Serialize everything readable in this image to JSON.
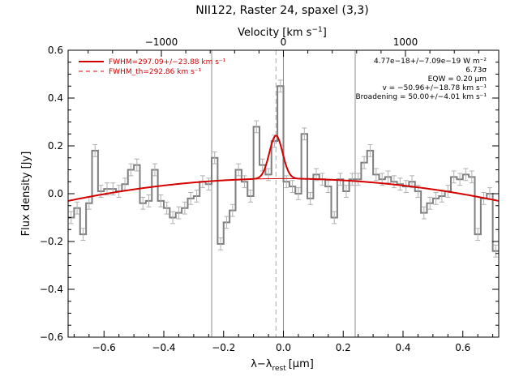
{
  "chart_data": {
    "type": "line",
    "title": "NII122, Raster 24, spaxel (3,3)",
    "xlabel_main": "λ−λ",
    "xlabel_sub": "rest",
    "xlabel_unit": "[μm]",
    "ylabel": "Flux density [Jy]",
    "top_axis_label": "Velocity [km s",
    "top_axis_label_sup": "−1",
    "top_axis_label_end": "]",
    "xlim": [
      -0.72,
      0.72
    ],
    "ylim": [
      -0.6,
      0.6
    ],
    "x_ticks": [
      -0.6,
      -0.4,
      -0.2,
      0.0,
      0.2,
      0.4,
      0.6
    ],
    "x_tick_labels": [
      "−0.6",
      "−0.4",
      "−0.2",
      "0.0",
      "0.2",
      "0.4",
      "0.6"
    ],
    "y_ticks": [
      -0.6,
      -0.4,
      -0.2,
      0.0,
      0.2,
      0.4,
      0.6
    ],
    "y_tick_labels": [
      "−0.6",
      "−0.4",
      "−0.2",
      "0.0",
      "0.2",
      "0.4",
      "0.6"
    ],
    "top_ticks_km_s": [
      -1000,
      0,
      1000
    ],
    "top_tick_labels": [
      "−1000",
      "0",
      "1000"
    ],
    "km_s_per_um": 2450,
    "vertical_lines_x": [
      -0.24,
      0.0,
      0.24
    ],
    "dashed_line_x": -0.025,
    "series": [
      {
        "name": "data",
        "style": "histogram",
        "color": "#7f7f7f",
        "x": [
          -0.72,
          -0.7,
          -0.68,
          -0.66,
          -0.64,
          -0.62,
          -0.6,
          -0.58,
          -0.56,
          -0.54,
          -0.52,
          -0.5,
          -0.48,
          -0.46,
          -0.44,
          -0.42,
          -0.4,
          -0.38,
          -0.36,
          -0.34,
          -0.32,
          -0.3,
          -0.28,
          -0.26,
          -0.24,
          -0.22,
          -0.2,
          -0.18,
          -0.16,
          -0.14,
          -0.12,
          -0.1,
          -0.08,
          -0.06,
          -0.04,
          -0.02,
          0.0,
          0.02,
          0.04,
          0.06,
          0.08,
          0.1,
          0.12,
          0.14,
          0.16,
          0.18,
          0.2,
          0.22,
          0.24,
          0.26,
          0.28,
          0.3,
          0.32,
          0.34,
          0.36,
          0.38,
          0.4,
          0.42,
          0.44,
          0.46,
          0.48,
          0.5,
          0.52,
          0.54,
          0.56,
          0.58,
          0.6,
          0.62,
          0.64,
          0.66,
          0.68,
          0.7
        ],
        "values": [
          -0.1,
          -0.06,
          -0.17,
          -0.04,
          0.18,
          0.01,
          0.02,
          0.02,
          0.01,
          0.04,
          0.1,
          0.12,
          -0.04,
          -0.03,
          0.1,
          -0.03,
          -0.06,
          -0.1,
          -0.08,
          -0.06,
          -0.02,
          -0.01,
          0.05,
          0.04,
          0.15,
          -0.21,
          -0.12,
          -0.07,
          0.1,
          0.05,
          -0.01,
          0.28,
          0.12,
          0.08,
          0.22,
          0.45,
          0.05,
          0.03,
          0.0,
          0.25,
          -0.02,
          0.08,
          0.06,
          0.03,
          -0.1,
          0.06,
          0.01,
          0.06,
          0.06,
          0.13,
          0.18,
          0.08,
          0.06,
          0.07,
          0.05,
          0.04,
          0.03,
          0.05,
          0.01,
          -0.08,
          -0.04,
          -0.02,
          -0.01,
          0.01,
          0.07,
          0.06,
          0.08,
          0.07,
          -0.17,
          -0.02,
          0.0,
          -0.24
        ],
        "error": 0.025
      },
      {
        "name": "FWHM=297.09+/−23.88 km s⁻¹",
        "style": "fit",
        "color": "#d40000",
        "baseline_quadratic": {
          "a": -0.18,
          "b": 0.0,
          "c": 0.063
        },
        "gaussian": {
          "center": -0.025,
          "amplitude": 0.18,
          "sigma": 0.022
        }
      },
      {
        "name": "FWHM_th=292.86 km s⁻¹",
        "style": "dashed",
        "color": "#d40000"
      }
    ],
    "legend_position": "top-left",
    "annotations": [
      "4.77e−18+/−7.09e−19 W m⁻²",
      "6.73σ",
      "EQW = 0.20 μm",
      "v = −50.96+/−18.78 km s⁻¹",
      "Broadening = 50.00+/−4.01 km s⁻¹"
    ],
    "annotation_position": "top-right"
  }
}
